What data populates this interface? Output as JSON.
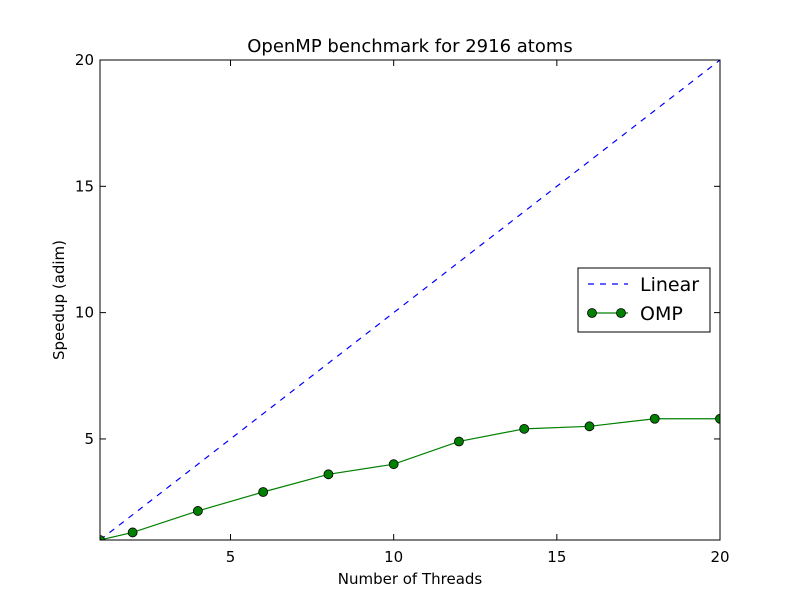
{
  "chart_data": {
    "type": "line",
    "title": "OpenMP benchmark for 2916 atoms",
    "xlabel": "Number of Threads",
    "ylabel": "Speedup (adim)",
    "xlim": [
      1,
      20
    ],
    "ylim": [
      1,
      20
    ],
    "xticks": [
      5,
      10,
      15,
      20
    ],
    "yticks": [
      5,
      10,
      15,
      20
    ],
    "grid": false,
    "legend_position": "center-right",
    "series": [
      {
        "name": "Linear",
        "style": "dashed",
        "color": "#0000ff",
        "markers": false,
        "x": [
          1,
          20
        ],
        "y": [
          1,
          20
        ]
      },
      {
        "name": "OMP",
        "style": "solid",
        "color": "#008000",
        "markers": true,
        "x": [
          1,
          2,
          4,
          6,
          8,
          10,
          12,
          14,
          16,
          18,
          20
        ],
        "y": [
          1.0,
          1.3,
          2.15,
          2.9,
          3.6,
          4.0,
          4.9,
          5.4,
          5.5,
          5.8,
          5.8
        ]
      }
    ]
  }
}
